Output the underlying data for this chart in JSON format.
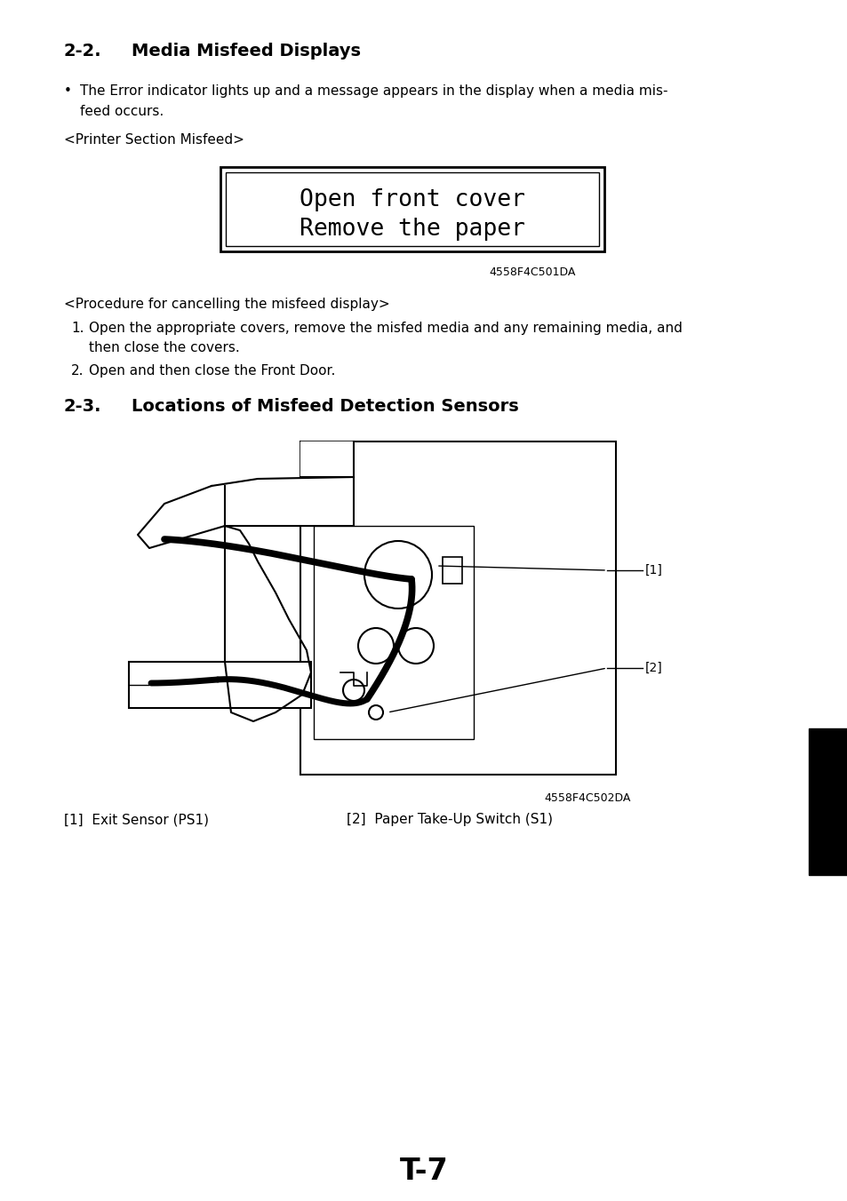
{
  "title_22": "2-2.",
  "title_22_text": "Media Misfeed Displays",
  "title_23": "2-3.",
  "title_23_text": "Locations of Misfeed Detection Sensors",
  "bullet_text1": "The Error indicator lights up and a message appears in the display when a media mis-",
  "bullet_text1b": "feed occurs.",
  "printer_section": "<Printer Section Misfeed>",
  "display_line1": "Open front cover",
  "display_line2": "Remove the paper",
  "code1": "4558F4C501DA",
  "code2": "4558F4C502DA",
  "procedure_header": "<Procedure for cancelling the misfeed display>",
  "step1a": "Open the appropriate covers, remove the misfed media and any remaining media, and",
  "step1b": "then close the covers.",
  "step2": "Open and then close the Front Door.",
  "label1": "[1]  Exit Sensor (PS1)",
  "label2": "[2]  Paper Take-Up Switch (S1)",
  "page_number": "T-7",
  "bg_color": "#ffffff",
  "text_color": "#000000"
}
